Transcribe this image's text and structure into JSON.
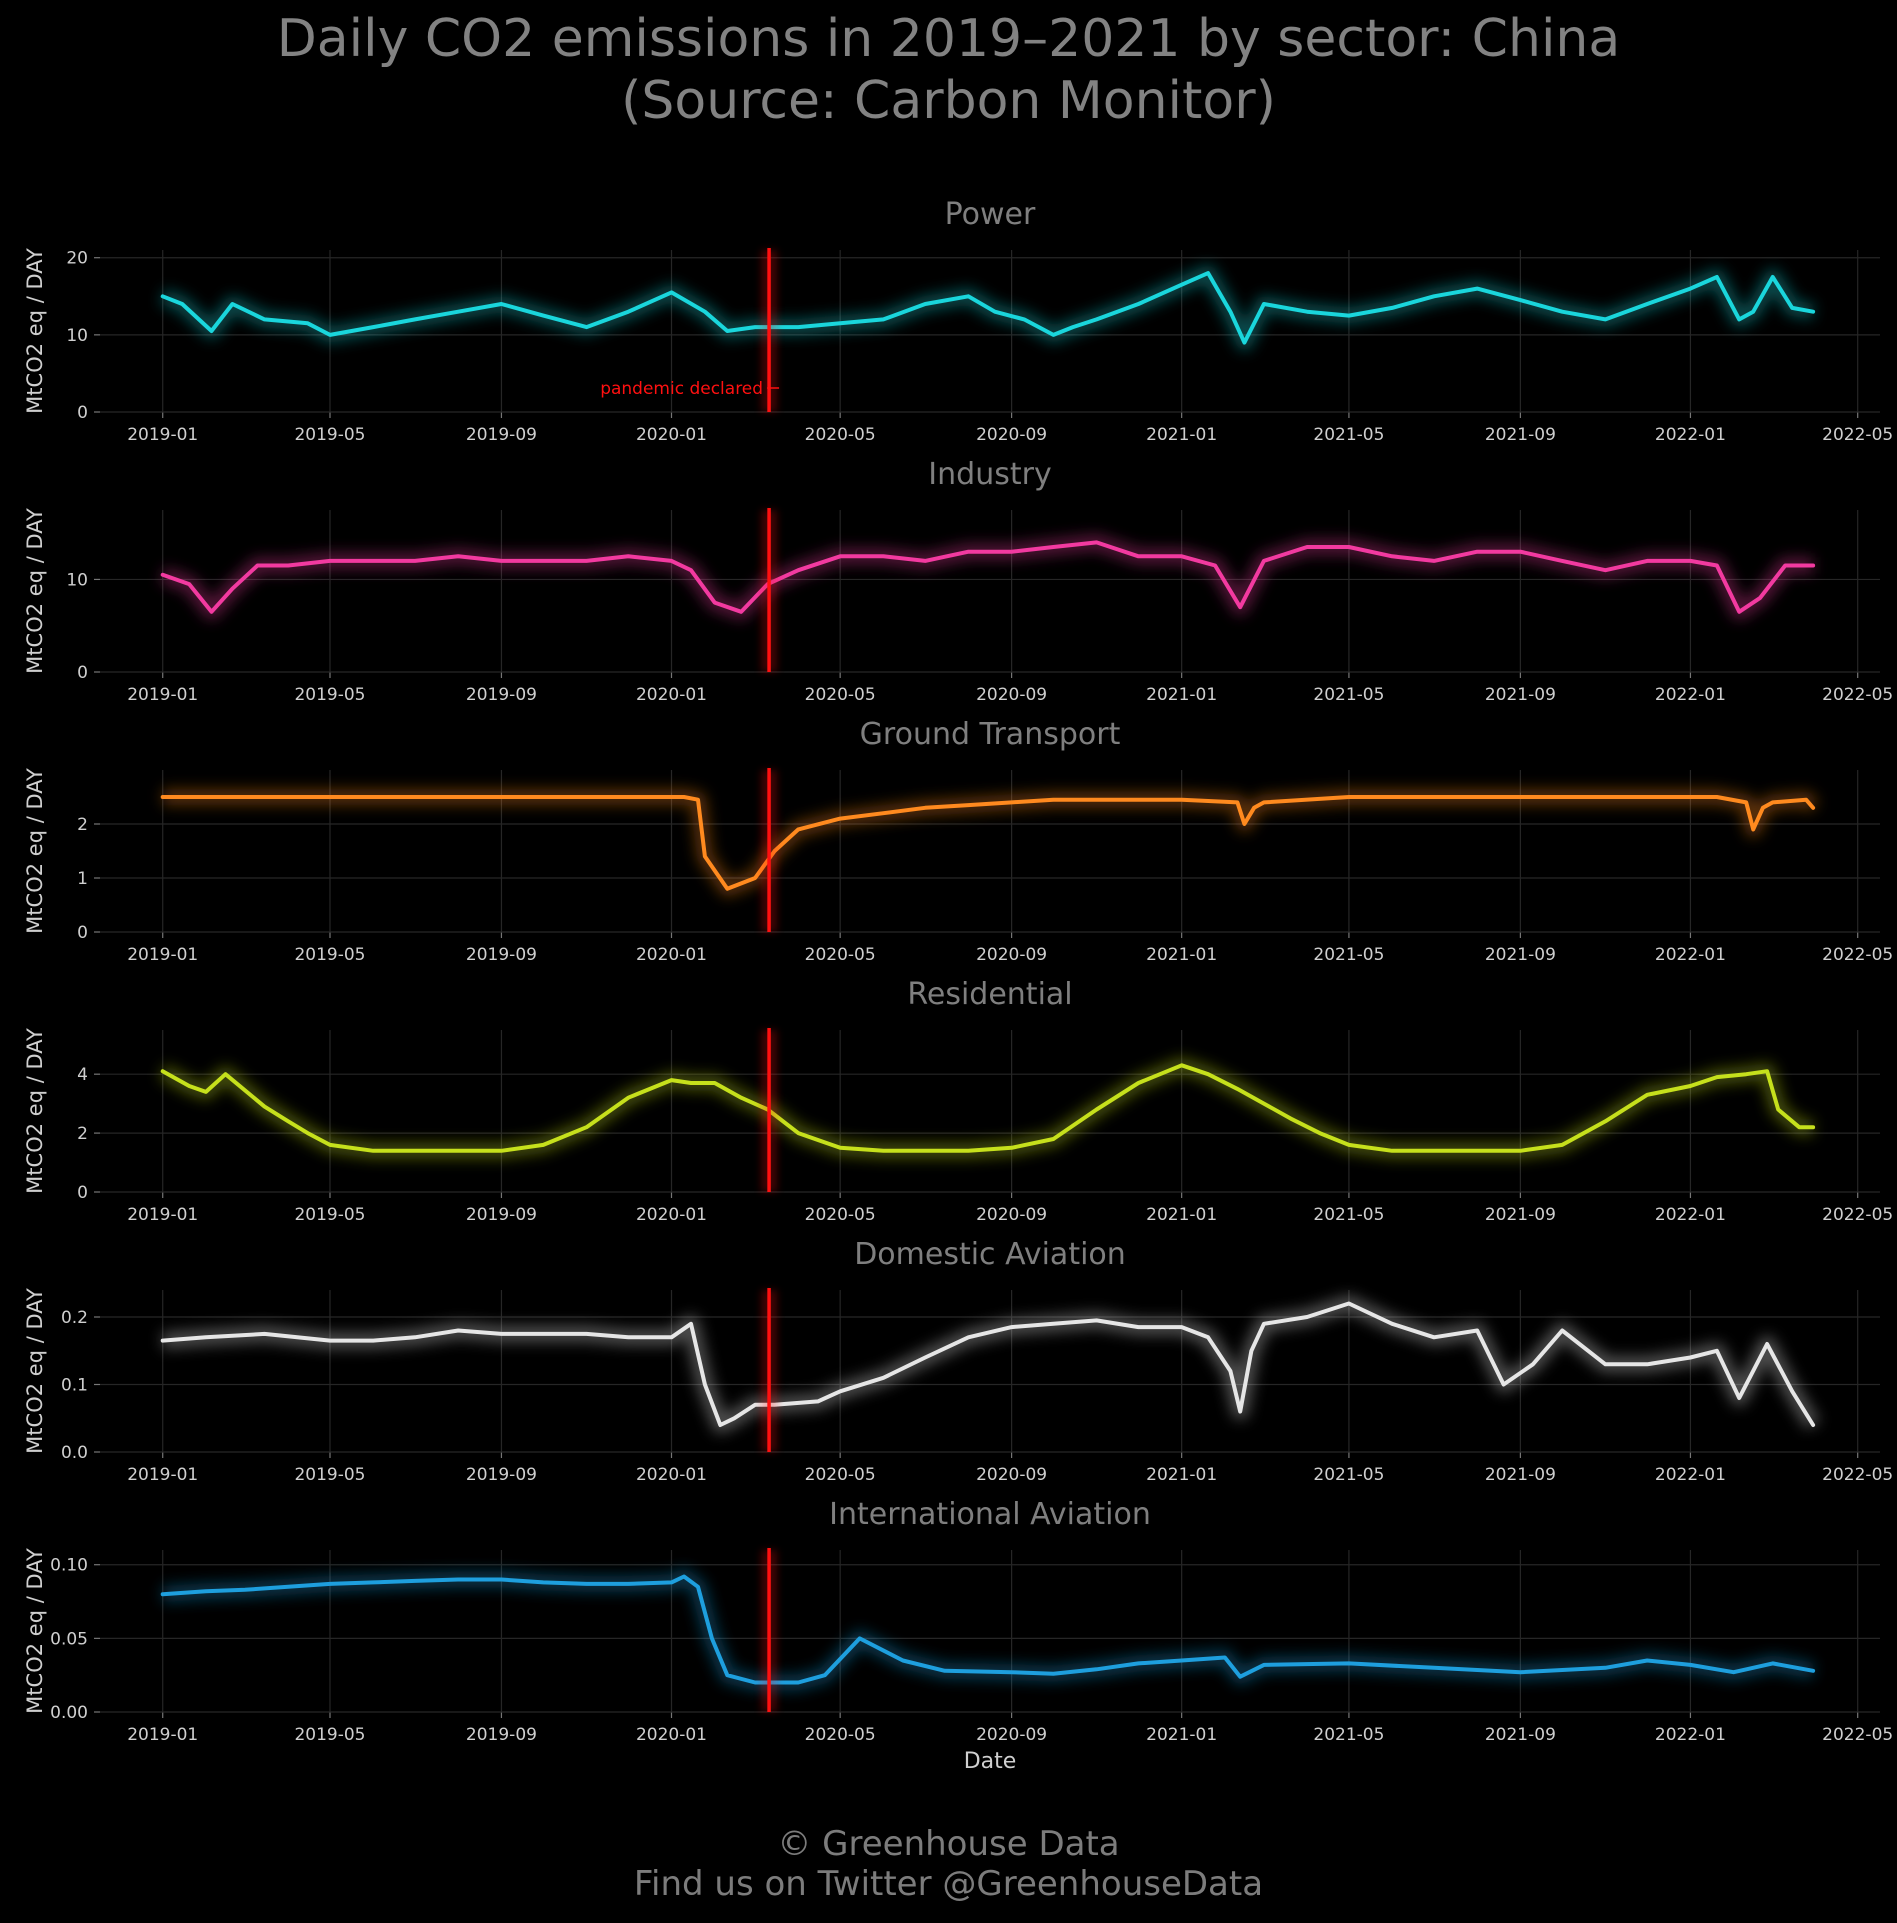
{
  "title_line1": "Daily CO2 emissions in 2019–2021 by sector: China",
  "title_line2": "(Source: Carbon Monitor)",
  "footer_line1": "© Greenhouse Data",
  "footer_line2": "Find us on Twitter @GreenhouseData",
  "chart_data": {
    "type": "line",
    "xlabel": "Date",
    "x_ticks": [
      "2019-01",
      "2019-05",
      "2019-09",
      "2020-01",
      "2020-05",
      "2020-09",
      "2021-01",
      "2021-05",
      "2021-09",
      "2022-01",
      "2022-05"
    ],
    "x_range": [
      "2018-11-17",
      "2022-05-17"
    ],
    "event": {
      "date": "2020-03-11",
      "label": "pandemic declared",
      "color": "#ff1010"
    },
    "grid": true,
    "panels": [
      {
        "name": "Power",
        "ylabel": "MtCO2 eq / DAY",
        "color": "#1ad6dc",
        "ylim": [
          0,
          21
        ],
        "yticks": [
          0,
          10,
          20
        ],
        "ytick_labels": [
          "0",
          "10",
          "20"
        ],
        "x": [
          "2019-01-01",
          "2019-01-15",
          "2019-02-05",
          "2019-02-20",
          "2019-03-15",
          "2019-04-15",
          "2019-05-01",
          "2019-06-01",
          "2019-07-01",
          "2019-08-01",
          "2019-09-01",
          "2019-10-01",
          "2019-11-01",
          "2019-12-01",
          "2020-01-01",
          "2020-01-25",
          "2020-02-10",
          "2020-03-01",
          "2020-04-01",
          "2020-05-01",
          "2020-06-01",
          "2020-07-01",
          "2020-08-01",
          "2020-08-20",
          "2020-09-10",
          "2020-10-01",
          "2020-10-15",
          "2020-11-01",
          "2020-12-01",
          "2021-01-01",
          "2021-01-20",
          "2021-02-05",
          "2021-02-15",
          "2021-03-01",
          "2021-04-01",
          "2021-05-01",
          "2021-06-01",
          "2021-07-01",
          "2021-08-01",
          "2021-09-01",
          "2021-10-01",
          "2021-11-01",
          "2021-12-01",
          "2022-01-01",
          "2022-01-20",
          "2022-02-05",
          "2022-02-15",
          "2022-03-01",
          "2022-03-15",
          "2022-03-30"
        ],
        "values": [
          15,
          14,
          10.5,
          14,
          12,
          11.5,
          10,
          11,
          12,
          13,
          14,
          12.5,
          11,
          13,
          15.5,
          13,
          10.5,
          11,
          11,
          11.5,
          12,
          14,
          15,
          13,
          12,
          10,
          11,
          12,
          14,
          16.5,
          18,
          13,
          9,
          14,
          13,
          12.5,
          13.5,
          15,
          16,
          14.5,
          13,
          12,
          14,
          16,
          17.5,
          12,
          13,
          17.5,
          13.5,
          13
        ]
      },
      {
        "name": "Industry",
        "ylabel": "MtCO2 eq / DAY",
        "color": "#f23aa0",
        "ylim": [
          0,
          17.5
        ],
        "yticks": [
          0,
          10
        ],
        "ytick_labels": [
          "0",
          "10"
        ],
        "x": [
          "2019-01-01",
          "2019-01-20",
          "2019-02-05",
          "2019-02-20",
          "2019-03-10",
          "2019-04-01",
          "2019-05-01",
          "2019-06-01",
          "2019-07-01",
          "2019-08-01",
          "2019-09-01",
          "2019-10-01",
          "2019-11-01",
          "2019-12-01",
          "2020-01-01",
          "2020-01-15",
          "2020-02-01",
          "2020-02-20",
          "2020-03-10",
          "2020-04-01",
          "2020-05-01",
          "2020-06-01",
          "2020-07-01",
          "2020-08-01",
          "2020-09-01",
          "2020-10-01",
          "2020-11-01",
          "2020-12-01",
          "2021-01-01",
          "2021-01-25",
          "2021-02-12",
          "2021-03-01",
          "2021-04-01",
          "2021-05-01",
          "2021-06-01",
          "2021-07-01",
          "2021-08-01",
          "2021-09-01",
          "2021-10-01",
          "2021-11-01",
          "2021-12-01",
          "2022-01-01",
          "2022-01-20",
          "2022-02-05",
          "2022-02-20",
          "2022-03-10",
          "2022-03-30"
        ],
        "values": [
          10.5,
          9.5,
          6.5,
          9,
          11.5,
          11.5,
          12,
          12,
          12,
          12.5,
          12,
          12,
          12,
          12.5,
          12,
          11,
          7.5,
          6.5,
          9.5,
          11,
          12.5,
          12.5,
          12,
          13,
          13,
          13.5,
          14,
          12.5,
          12.5,
          11.5,
          7,
          12,
          13.5,
          13.5,
          12.5,
          12,
          13,
          13,
          12,
          11,
          12,
          12,
          11.5,
          6.5,
          8,
          11.5,
          11.5
        ]
      },
      {
        "name": "Ground Transport",
        "ylabel": "MtCO2 eq / DAY",
        "color": "#ff8a1f",
        "ylim": [
          0,
          3.0
        ],
        "yticks": [
          0,
          1,
          2
        ],
        "ytick_labels": [
          "0",
          "1",
          "2"
        ],
        "x": [
          "2019-01-01",
          "2019-02-01",
          "2019-05-01",
          "2019-09-01",
          "2019-12-01",
          "2020-01-10",
          "2020-01-20",
          "2020-01-25",
          "2020-02-10",
          "2020-03-01",
          "2020-03-15",
          "2020-04-01",
          "2020-05-01",
          "2020-06-01",
          "2020-07-01",
          "2020-08-01",
          "2020-09-01",
          "2020-10-01",
          "2020-11-01",
          "2020-12-01",
          "2021-01-01",
          "2021-02-10",
          "2021-02-15",
          "2021-02-22",
          "2021-03-01",
          "2021-05-01",
          "2021-09-01",
          "2021-12-01",
          "2022-01-20",
          "2022-02-10",
          "2022-02-15",
          "2022-02-22",
          "2022-03-01",
          "2022-03-25",
          "2022-03-30"
        ],
        "values": [
          2.5,
          2.5,
          2.5,
          2.5,
          2.5,
          2.5,
          2.45,
          1.4,
          0.8,
          1.0,
          1.5,
          1.9,
          2.1,
          2.2,
          2.3,
          2.35,
          2.4,
          2.45,
          2.45,
          2.45,
          2.45,
          2.4,
          2.0,
          2.3,
          2.4,
          2.5,
          2.5,
          2.5,
          2.5,
          2.4,
          1.9,
          2.3,
          2.4,
          2.45,
          2.3
        ]
      },
      {
        "name": "Residential",
        "ylabel": "MtCO2 eq / DAY",
        "color": "#c6e01c",
        "ylim": [
          0,
          5.5
        ],
        "yticks": [
          0,
          2,
          4
        ],
        "ytick_labels": [
          "0",
          "2",
          "4"
        ],
        "x": [
          "2019-01-01",
          "2019-01-20",
          "2019-02-01",
          "2019-02-15",
          "2019-03-15",
          "2019-04-01",
          "2019-04-15",
          "2019-05-01",
          "2019-06-01",
          "2019-07-01",
          "2019-08-01",
          "2019-09-01",
          "2019-10-01",
          "2019-11-01",
          "2019-12-01",
          "2020-01-01",
          "2020-01-15",
          "2020-02-01",
          "2020-02-20",
          "2020-03-10",
          "2020-04-01",
          "2020-05-01",
          "2020-06-01",
          "2020-08-01",
          "2020-09-01",
          "2020-10-01",
          "2020-11-01",
          "2020-12-01",
          "2021-01-01",
          "2021-01-20",
          "2021-02-10",
          "2021-03-01",
          "2021-03-20",
          "2021-04-10",
          "2021-05-01",
          "2021-06-01",
          "2021-08-01",
          "2021-09-01",
          "2021-10-01",
          "2021-11-01",
          "2021-12-01",
          "2022-01-01",
          "2022-01-20",
          "2022-02-10",
          "2022-02-25",
          "2022-03-05",
          "2022-03-20",
          "2022-03-30"
        ],
        "values": [
          4.1,
          3.6,
          3.4,
          4.0,
          2.9,
          2.4,
          2.0,
          1.6,
          1.4,
          1.4,
          1.4,
          1.4,
          1.6,
          2.2,
          3.2,
          3.8,
          3.7,
          3.7,
          3.2,
          2.8,
          2.0,
          1.5,
          1.4,
          1.4,
          1.5,
          1.8,
          2.8,
          3.7,
          4.3,
          4.0,
          3.5,
          3.0,
          2.5,
          2.0,
          1.6,
          1.4,
          1.4,
          1.4,
          1.6,
          2.4,
          3.3,
          3.6,
          3.9,
          4.0,
          4.1,
          2.8,
          2.2,
          2.2
        ]
      },
      {
        "name": "Domestic Aviation",
        "ylabel": "MtCO2 eq / DAY",
        "color": "#e6e6e6",
        "ylim": [
          0,
          0.24
        ],
        "yticks": [
          0,
          0.1,
          0.2
        ],
        "ytick_labels": [
          "0.0",
          "0.1",
          "0.2"
        ],
        "x": [
          "2019-01-01",
          "2019-02-01",
          "2019-03-15",
          "2019-05-01",
          "2019-06-01",
          "2019-07-01",
          "2019-08-01",
          "2019-09-01",
          "2019-10-01",
          "2019-11-01",
          "2019-12-01",
          "2020-01-01",
          "2020-01-15",
          "2020-01-25",
          "2020-02-05",
          "2020-02-15",
          "2020-03-01",
          "2020-03-15",
          "2020-04-15",
          "2020-05-01",
          "2020-06-01",
          "2020-07-01",
          "2020-08-01",
          "2020-09-01",
          "2020-10-01",
          "2020-11-01",
          "2020-12-01",
          "2021-01-01",
          "2021-01-20",
          "2021-02-05",
          "2021-02-12",
          "2021-02-20",
          "2021-03-01",
          "2021-04-01",
          "2021-05-01",
          "2021-06-01",
          "2021-07-01",
          "2021-08-01",
          "2021-08-20",
          "2021-09-10",
          "2021-10-01",
          "2021-11-01",
          "2021-12-01",
          "2022-01-01",
          "2022-01-20",
          "2022-02-05",
          "2022-02-25",
          "2022-03-15",
          "2022-03-30"
        ],
        "values": [
          0.165,
          0.17,
          0.175,
          0.165,
          0.165,
          0.17,
          0.18,
          0.175,
          0.175,
          0.175,
          0.17,
          0.17,
          0.19,
          0.1,
          0.04,
          0.05,
          0.07,
          0.07,
          0.075,
          0.09,
          0.11,
          0.14,
          0.17,
          0.185,
          0.19,
          0.195,
          0.185,
          0.185,
          0.17,
          0.12,
          0.06,
          0.15,
          0.19,
          0.2,
          0.22,
          0.19,
          0.17,
          0.18,
          0.1,
          0.13,
          0.18,
          0.13,
          0.13,
          0.14,
          0.15,
          0.08,
          0.16,
          0.09,
          0.04
        ]
      },
      {
        "name": "International Aviation",
        "ylabel": "MtCO2 eq / DAY",
        "color": "#1e9fde",
        "ylim": [
          0,
          0.11
        ],
        "yticks": [
          0,
          0.05,
          0.1
        ],
        "ytick_labels": [
          "0.00",
          "0.05",
          "0.10"
        ],
        "x": [
          "2019-01-01",
          "2019-02-01",
          "2019-03-01",
          "2019-04-01",
          "2019-05-01",
          "2019-06-01",
          "2019-07-01",
          "2019-08-01",
          "2019-09-01",
          "2019-10-01",
          "2019-11-01",
          "2019-12-01",
          "2020-01-01",
          "2020-01-10",
          "2020-01-20",
          "2020-01-30",
          "2020-02-10",
          "2020-03-01",
          "2020-04-01",
          "2020-04-20",
          "2020-05-15",
          "2020-06-15",
          "2020-07-15",
          "2020-09-01",
          "2020-10-01",
          "2020-11-01",
          "2020-12-01",
          "2021-01-01",
          "2021-02-01",
          "2021-02-12",
          "2021-03-01",
          "2021-05-01",
          "2021-07-01",
          "2021-09-01",
          "2021-11-01",
          "2021-12-01",
          "2022-01-01",
          "2022-02-01",
          "2022-03-01",
          "2022-03-30"
        ],
        "values": [
          0.08,
          0.082,
          0.083,
          0.085,
          0.087,
          0.088,
          0.089,
          0.09,
          0.09,
          0.088,
          0.087,
          0.087,
          0.088,
          0.092,
          0.085,
          0.05,
          0.025,
          0.02,
          0.02,
          0.025,
          0.05,
          0.035,
          0.028,
          0.027,
          0.026,
          0.029,
          0.033,
          0.035,
          0.037,
          0.024,
          0.032,
          0.033,
          0.03,
          0.027,
          0.03,
          0.035,
          0.032,
          0.027,
          0.033,
          0.028
        ]
      }
    ]
  }
}
